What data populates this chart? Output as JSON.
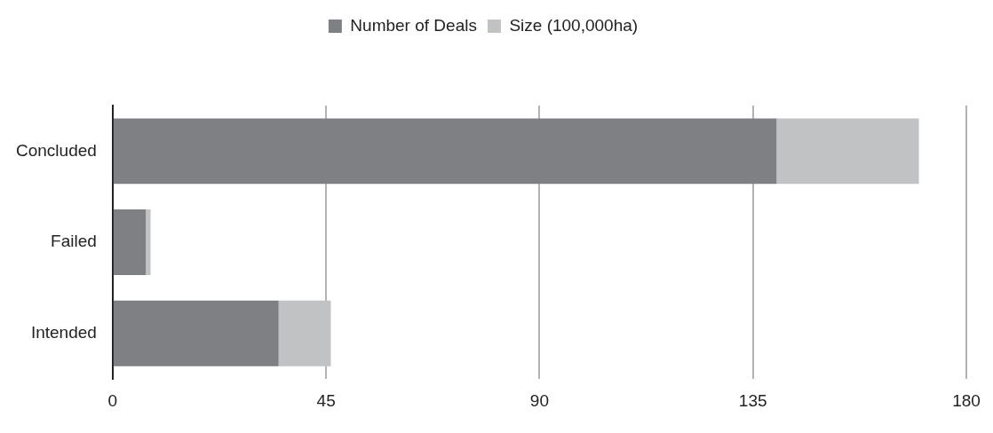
{
  "chart_data": {
    "type": "bar",
    "orientation": "horizontal",
    "stacked": true,
    "categories": [
      "Concluded",
      "Failed",
      "Intended"
    ],
    "series": [
      {
        "name": "Number of Deals",
        "color": "#7f8084",
        "values": [
          140,
          7,
          35
        ]
      },
      {
        "name": "Size (100,000ha)",
        "color": "#c1c2c4",
        "values": [
          30,
          1,
          11
        ]
      }
    ],
    "xlim": [
      0,
      180
    ],
    "xticks": [
      0,
      45,
      90,
      135,
      180
    ],
    "grid": "x",
    "legend": "top"
  }
}
